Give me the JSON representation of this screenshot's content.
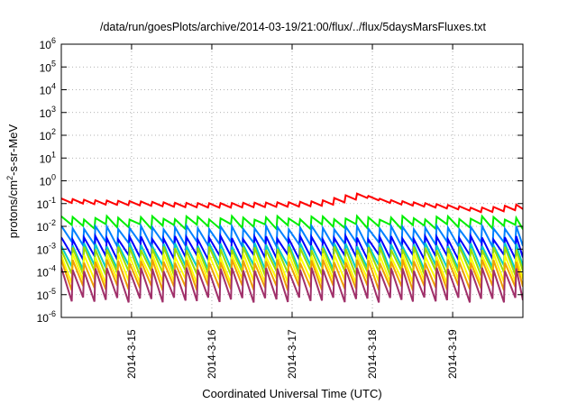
{
  "chart_data": {
    "type": "line",
    "title": "/data/run/goesPlots/archive/2014-03-19/21:00/flux/../flux/5daysMarsFluxes.txt",
    "xlabel": "Coordinated Universal Time (UTC)",
    "ylabel": "protons/cm2-s-sr-MeV",
    "ylabel_parts": {
      "before": "protons/cm",
      "sup": "2",
      "after": "-s-sr-MeV"
    },
    "yscale": "log",
    "xlim": [
      "2014-03-14T03:00",
      "2014-03-19T21:00"
    ],
    "ylim": [
      1e-06,
      1000000.0
    ],
    "y_ticks": [
      {
        "base": "10",
        "exp": "-6"
      },
      {
        "base": "10",
        "exp": "-5"
      },
      {
        "base": "10",
        "exp": "-4"
      },
      {
        "base": "10",
        "exp": "-3"
      },
      {
        "base": "10",
        "exp": "-2"
      },
      {
        "base": "10",
        "exp": "-1"
      },
      {
        "base": "10",
        "exp": "0"
      },
      {
        "base": "10",
        "exp": "1"
      },
      {
        "base": "10",
        "exp": "2"
      },
      {
        "base": "10",
        "exp": "3"
      },
      {
        "base": "10",
        "exp": "4"
      },
      {
        "base": "10",
        "exp": "5"
      },
      {
        "base": "10",
        "exp": "6"
      }
    ],
    "x_ticks": [
      "2014-3-15",
      "2014-3-16",
      "2014-3-17",
      "2014-3-18",
      "2014-3-19"
    ],
    "grid": true,
    "sawtooth_period_hours": 3.4,
    "series": [
      {
        "color": "#ff0000",
        "sawtooth": false,
        "trend": [
          [
            "2014-03-14T03:00",
            0.13
          ],
          [
            "2014-03-14T12:00",
            0.11
          ],
          [
            "2014-03-15T00:00",
            0.1
          ],
          [
            "2014-03-15T12:00",
            0.085
          ],
          [
            "2014-03-16T00:00",
            0.08
          ],
          [
            "2014-03-16T12:00",
            0.085
          ],
          [
            "2014-03-17T00:00",
            0.09
          ],
          [
            "2014-03-17T08:00",
            0.1
          ],
          [
            "2014-03-17T12:00",
            0.13
          ],
          [
            "2014-03-17T16:00",
            0.18
          ],
          [
            "2014-03-17T19:00",
            0.22
          ],
          [
            "2014-03-17T22:00",
            0.18
          ],
          [
            "2014-03-18T03:00",
            0.12
          ],
          [
            "2014-03-18T12:00",
            0.09
          ],
          [
            "2014-03-19T00:00",
            0.065
          ],
          [
            "2014-03-19T06:00",
            0.05
          ],
          [
            "2014-03-19T12:00",
            0.055
          ],
          [
            "2014-03-19T21:00",
            0.075
          ]
        ],
        "jitter": [
          0.75,
          1.35
        ]
      },
      {
        "color": "#00ee00",
        "sawtooth": true,
        "peak": 0.024,
        "trough": 0.01
      },
      {
        "color": "#0080ff",
        "sawtooth": true,
        "peak": 0.009,
        "trough": 0.0017
      },
      {
        "color": "#0000ff",
        "sawtooth": true,
        "peak": 0.0032,
        "trough": 0.00045
      },
      {
        "color": "#00cccc",
        "sawtooth": true,
        "peak": 0.0016,
        "trough": 0.00016
      },
      {
        "color": "#99dd00",
        "sawtooth": true,
        "peak": 0.0011,
        "trough": 9e-05
      },
      {
        "color": "#ffff00",
        "sawtooth": true,
        "peak": 0.00055,
        "trough": 4e-05
      },
      {
        "color": "#f0a000",
        "sawtooth": true,
        "peak": 0.0003,
        "trough": 2e-05
      },
      {
        "color": "#a0306a",
        "sawtooth": true,
        "peak": 0.00013,
        "trough": 6e-06
      }
    ]
  }
}
